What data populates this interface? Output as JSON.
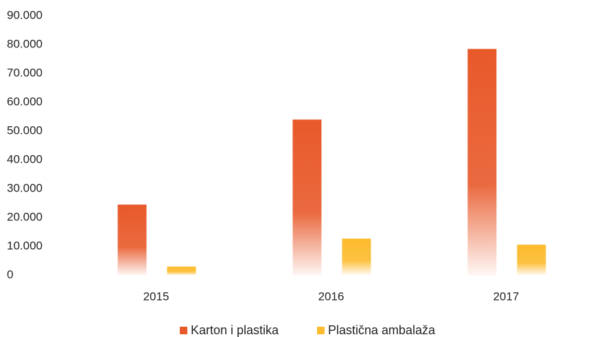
{
  "chart_data": {
    "type": "bar",
    "categories": [
      "2015",
      "2016",
      "2017"
    ],
    "series": [
      {
        "name": "Karton i plastika",
        "color": "#e8592a",
        "values": [
          24500,
          54000,
          78500
        ]
      },
      {
        "name": "Plastična ambalaža",
        "color": "#fdbb2d",
        "values": [
          3000,
          12700,
          10600
        ]
      }
    ],
    "ylim": [
      0,
      90000
    ],
    "yticks": [
      0,
      {
        "value": 10000,
        "label": "10.000"
      },
      {
        "value": 20000,
        "label": "20.000"
      },
      {
        "value": 30000,
        "label": "30.000"
      },
      {
        "value": 40000,
        "label": "40.000"
      },
      {
        "value": 50000,
        "label": "50.000"
      },
      {
        "value": 60000,
        "label": "60.000"
      },
      {
        "value": 70000,
        "label": "70.000"
      },
      {
        "value": 80000,
        "label": "80.000"
      },
      {
        "value": 90000,
        "label": "90.000"
      }
    ],
    "grid": false,
    "legend": "bottom"
  }
}
